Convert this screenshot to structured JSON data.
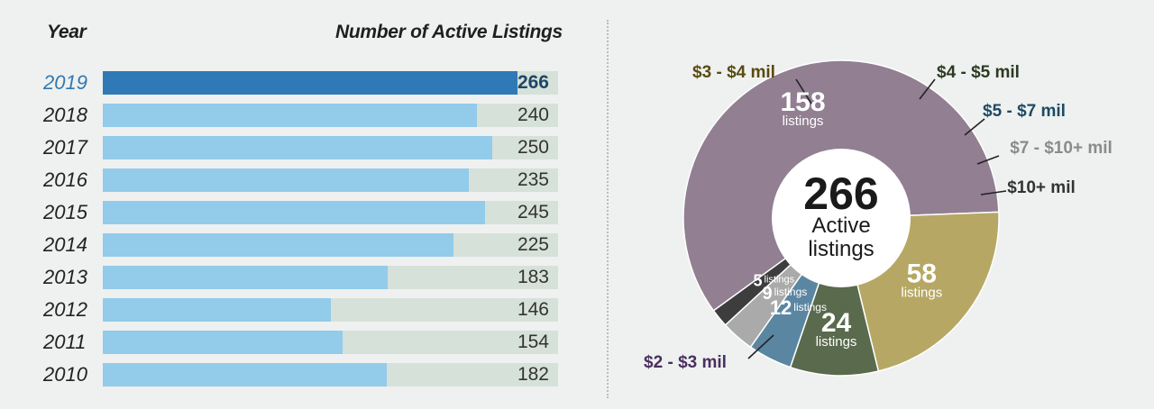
{
  "bar_panel": {
    "year_header": "Year",
    "value_header": "Number of Active Listings"
  },
  "donut_panel": {
    "center_value": "266",
    "center_line1": "Active",
    "center_line2": "listings"
  },
  "colors": {
    "bar_fill": "#93cbea",
    "bar_fill_highlight": "#2f7ab6",
    "bar_track": "#d6e1d9",
    "background": "#eef1ef"
  },
  "chart_data": [
    {
      "type": "bar",
      "orientation": "horizontal",
      "categories": [
        "2019",
        "2018",
        "2017",
        "2016",
        "2015",
        "2014",
        "2013",
        "2012",
        "2011",
        "2010"
      ],
      "values": [
        266,
        240,
        250,
        235,
        245,
        225,
        183,
        146,
        154,
        182
      ],
      "labels": [
        "266",
        "240",
        "250",
        "235",
        "245",
        "225",
        "183",
        "146",
        "154",
        "182"
      ],
      "highlight": "2019",
      "xlabel": "Number of Active Listings",
      "ylabel": "Year",
      "xlim": [
        0,
        292
      ]
    },
    {
      "type": "pie",
      "style": "donut",
      "total": 266,
      "slices": [
        {
          "name": "$2 - $3 mil",
          "value": 158,
          "count_label": "158",
          "unit_label": "listings",
          "color": "#927f92"
        },
        {
          "name": "$3 - $4 mil",
          "value": 58,
          "count_label": "58",
          "unit_label": "listings",
          "color": "#b6a864"
        },
        {
          "name": "$4 - $5 mil",
          "value": 24,
          "count_label": "24",
          "unit_label": "listings",
          "color": "#5a6a4d"
        },
        {
          "name": "$5 - $7 mil",
          "value": 12,
          "count_label": "12",
          "unit_label": "listings",
          "color": "#5b86a2"
        },
        {
          "name": "$7 - $10+ mil",
          "value": 9,
          "count_label": "9",
          "unit_label": "listings",
          "color": "#a9aaa9"
        },
        {
          "name": "$10+ mil",
          "value": 5,
          "count_label": "5",
          "unit_label": "listings",
          "color": "#3d3d3d"
        }
      ],
      "label_colors": [
        "#4a2f5e",
        "#5a4a10",
        "#2d3a22",
        "#1c4a64",
        "#8a8c8a",
        "#333333"
      ]
    }
  ]
}
